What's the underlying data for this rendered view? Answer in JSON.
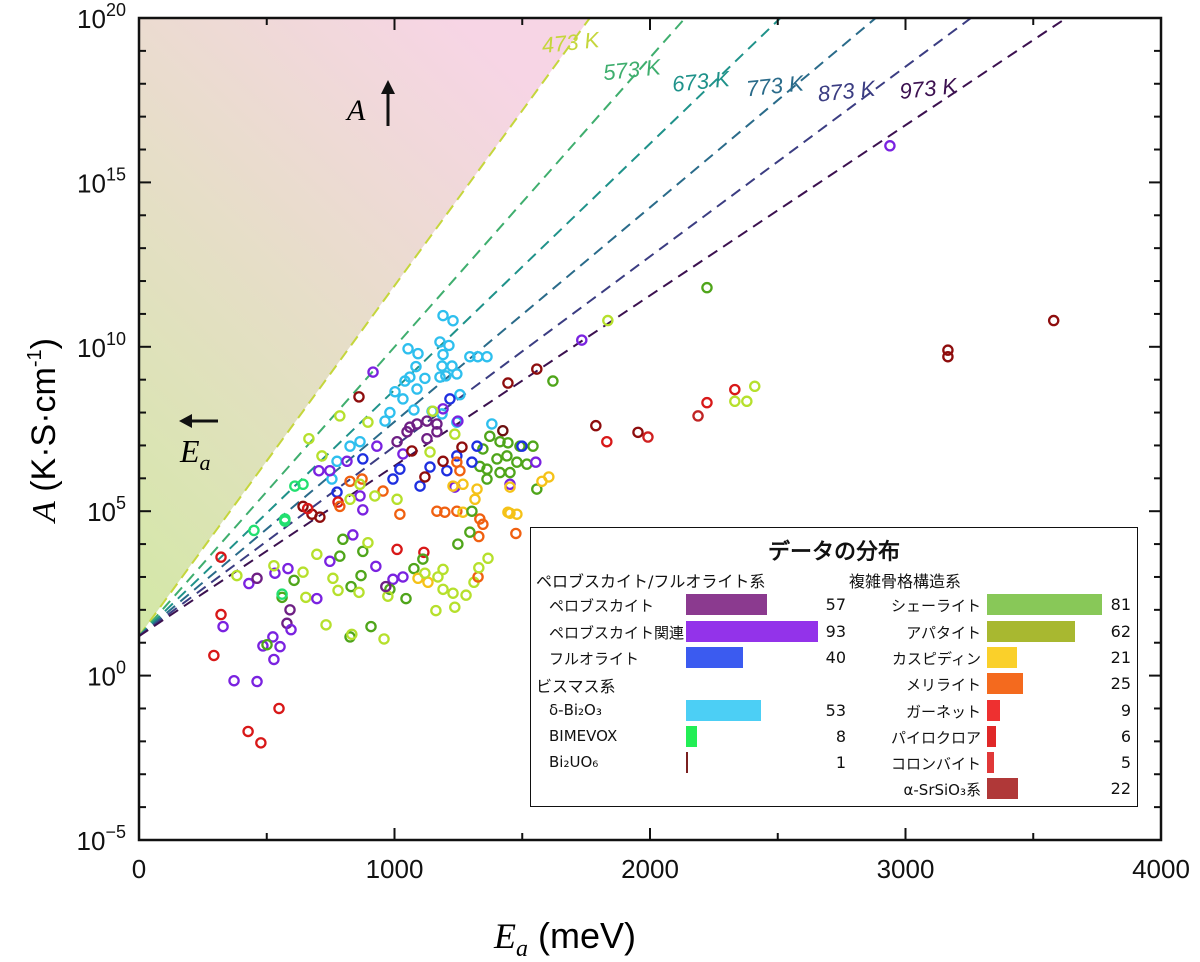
{
  "chart_data": {
    "type": "scatter",
    "xlabel": {
      "main": "E",
      "sub": "a",
      "unit": " (meV)"
    },
    "ylabel": {
      "main": "A",
      "unit": " (K·S·cm",
      "sup": "-1",
      "close": ")"
    },
    "xlim": [
      0,
      4000
    ],
    "ylim": [
      1e-05,
      1e+20
    ],
    "yscale": "log",
    "grid": false,
    "x_ticks": [
      "0",
      "1000",
      "2000",
      "3000",
      "4000"
    ],
    "y_ticks": [
      {
        "base": "10",
        "exp": "20",
        "value": 1e+20
      },
      {
        "base": "10",
        "exp": "15",
        "value": 1000000000000000.0
      },
      {
        "base": "10",
        "exp": "10",
        "value": 10000000000.0
      },
      {
        "base": "10",
        "exp": "5",
        "value": 100000.0
      },
      {
        "base": "10",
        "exp": "0",
        "value": 1
      },
      {
        "base": "10",
        "exp": "−5",
        "value": 1e-05
      }
    ],
    "annotations": {
      "a_arrow": "A",
      "ea_arrow_main": "E",
      "ea_arrow_sub": "a"
    },
    "region_colors": {
      "top": "#f7d5e5",
      "bottom": "#d3e8a6"
    },
    "isotherms": [
      {
        "label": "473 K",
        "T": 473,
        "color": "#c5d63c"
      },
      {
        "label": "573 K",
        "T": 573,
        "color": "#3fae6e"
      },
      {
        "label": "673 K",
        "T": 673,
        "color": "#1f928a"
      },
      {
        "label": "773 K",
        "T": 773,
        "color": "#2a6b8a"
      },
      {
        "label": "873 K",
        "T": 873,
        "color": "#3b3d82"
      },
      {
        "label": "973 K",
        "T": 973,
        "color": "#3c1150"
      }
    ],
    "categories": {
      "pv": {
        "label": "ペロブスカイト",
        "count": 57,
        "color": "#6e1f84",
        "bar": "#8b3a8f"
      },
      "pr": {
        "label": "ペロブスカイト関連",
        "count": 93,
        "color": "#7a22e0",
        "bar": "#9333ea"
      },
      "fl": {
        "label": "フルオライト",
        "count": 40,
        "color": "#1e2fe0",
        "bar": "#3b5bf0"
      },
      "db": {
        "label": "δ-Bi₂O₃",
        "count": 53,
        "color": "#2ebfee",
        "bar": "#4ccff5"
      },
      "bm": {
        "label": "BIMEVOX",
        "count": 8,
        "color": "#22e070",
        "bar": "#22ee55"
      },
      "bu": {
        "label": "Bi₂UO₆",
        "count": 1,
        "color": "#6b0f0f",
        "bar": "#7a2020"
      },
      "sh": {
        "label": "シェーライト",
        "count": 81,
        "color": "#4fa51a",
        "bar": "#88c858"
      },
      "ap": {
        "label": "アパタイト",
        "count": 62,
        "color": "#b6e02c",
        "bar": "#a8b830"
      },
      "ca": {
        "label": "カスピディン",
        "count": 21,
        "color": "#f5c218",
        "bar": "#fad02a"
      },
      "me": {
        "label": "メリライト",
        "count": 25,
        "color": "#f06010",
        "bar": "#f46a1e"
      },
      "ga": {
        "label": "ガーネット",
        "count": 9,
        "color": "#d81818",
        "bar": "#ee3030"
      },
      "py": {
        "label": "パイロクロア",
        "count": 6,
        "color": "#d02020",
        "bar": "#e02828"
      },
      "co": {
        "label": "コロンバイト",
        "count": 5,
        "color": "#c02424",
        "bar": "#e03838"
      },
      "ss": {
        "label": "α-SrSiO₃系",
        "count": 22,
        "color": "#8e0d0d",
        "bar": "#b03838"
      }
    },
    "points": [
      [
        321,
        72.0,
        "ga"
      ],
      [
        329,
        31.0,
        "pr"
      ],
      [
        293,
        4.1,
        "ga"
      ],
      [
        372,
        0.7,
        "pr"
      ],
      [
        462,
        0.66,
        "pr"
      ],
      [
        548,
        0.1,
        "ga"
      ],
      [
        427,
        0.02,
        "ga"
      ],
      [
        477,
        0.009,
        "ga"
      ],
      [
        524,
        15.0,
        "pr"
      ],
      [
        485,
        8.0,
        "pr"
      ],
      [
        552,
        7.6,
        "pr"
      ],
      [
        528,
        3.1,
        "pr"
      ],
      [
        501,
        8.7,
        "sh"
      ],
      [
        591,
        100.0,
        "pv"
      ],
      [
        579,
        39.0,
        "pv"
      ],
      [
        595,
        25.0,
        "pr"
      ],
      [
        560,
        240.0,
        "sh"
      ],
      [
        560,
        300.0,
        "bm"
      ],
      [
        732,
        35.0,
        "ap"
      ],
      [
        826,
        15.0,
        "sh"
      ],
      [
        833,
        18.0,
        "ap"
      ],
      [
        908,
        31.0,
        "sh"
      ],
      [
        959,
        13.0,
        "ap"
      ],
      [
        653,
        240.0,
        "ap"
      ],
      [
        696,
        220.0,
        "pr"
      ],
      [
        759,
        910.0,
        "ap"
      ],
      [
        779,
        390.0,
        "ap"
      ],
      [
        830,
        510.0,
        "sh"
      ],
      [
        861,
        340.0,
        "ap"
      ],
      [
        869,
        1100.0,
        "sh"
      ],
      [
        927,
        2100.0,
        "pr"
      ],
      [
        1010,
        6900.0,
        "ga"
      ],
      [
        1115,
        5600.0,
        "ga"
      ],
      [
        1111,
        3500.0,
        "sh"
      ],
      [
        1076,
        1800.0,
        "sh"
      ],
      [
        994,
        850.0,
        "pr"
      ],
      [
        1033,
        1000.0,
        "pr"
      ],
      [
        982,
        420.0,
        "sh"
      ],
      [
        974,
        260.0,
        "ap"
      ],
      [
        1045,
        220.0,
        "sh"
      ],
      [
        966,
        510.0,
        "pv"
      ],
      [
        1092,
        910.0,
        "ca"
      ],
      [
        1131,
        690.0,
        "ca"
      ],
      [
        1119,
        1300.0,
        "ap"
      ],
      [
        1170,
        1000.0,
        "ap"
      ],
      [
        1190,
        1700.0,
        "ap"
      ],
      [
        1190,
        420.0,
        "ap"
      ],
      [
        1229,
        320.0,
        "ap"
      ],
      [
        1280,
        280.0,
        "ap"
      ],
      [
        1162,
        95.0,
        "ap"
      ],
      [
        1236,
        120.0,
        "ap"
      ],
      [
        1311,
        690.0,
        "ap"
      ],
      [
        1327,
        1000.0,
        "me"
      ],
      [
        1330,
        1900.0,
        "ap"
      ],
      [
        1366,
        3700.0,
        "ap"
      ],
      [
        1248,
        10000.0,
        "sh"
      ],
      [
        1346,
        40000.0,
        "me"
      ],
      [
        1330,
        17000.0,
        "me"
      ],
      [
        1475,
        21000.0,
        "me"
      ],
      [
        1452,
        87000.0,
        "ca"
      ],
      [
        1295,
        23000.0,
        "sh"
      ],
      [
        430,
        630.0,
        "pr"
      ],
      [
        462,
        910.0,
        "pv"
      ],
      [
        383,
        1100.0,
        "ap"
      ],
      [
        321,
        4000.0,
        "ga"
      ],
      [
        532,
        1300.0,
        "pr"
      ],
      [
        583,
        1800.0,
        "pr"
      ],
      [
        642,
        1400.0,
        "ap"
      ],
      [
        607,
        790.0,
        "sh"
      ],
      [
        528,
        2200.0,
        "ap"
      ],
      [
        747,
        3000.0,
        "pr"
      ],
      [
        696,
        4900.0,
        "ap"
      ],
      [
        786,
        4300.0,
        "sh"
      ],
      [
        837,
        19000.0,
        "pr"
      ],
      [
        876,
        6000.0,
        "sh"
      ],
      [
        896,
        11000.0,
        "ap"
      ],
      [
        798,
        14000.0,
        "sh"
      ],
      [
        450,
        26000.0,
        "bm"
      ],
      [
        571,
        50000.0,
        "bm"
      ],
      [
        1190,
        89000000000.0,
        "db"
      ],
      [
        1229,
        62000000000.0,
        "db"
      ],
      [
        1178,
        14000000000.0,
        "db"
      ],
      [
        1213,
        11000000000.0,
        "db"
      ],
      [
        1053,
        8700000000.0,
        "db"
      ],
      [
        1092,
        6200000000.0,
        "db"
      ],
      [
        1295,
        5000000000.0,
        "db"
      ],
      [
        1326,
        5000000000.0,
        "db"
      ],
      [
        1362,
        5000000000.0,
        "db"
      ],
      [
        1190,
        5800000000.0,
        "db"
      ],
      [
        1084,
        2500000000.0,
        "db"
      ],
      [
        1186,
        2600000000.0,
        "db"
      ],
      [
        1225,
        2600000000.0,
        "db"
      ],
      [
        1119,
        1100000000.0,
        "db"
      ],
      [
        1060,
        1200000000.0,
        "db"
      ],
      [
        1041,
        910000000.0,
        "db"
      ],
      [
        1178,
        1200000000.0,
        "db"
      ],
      [
        1201,
        1300000000.0,
        "db"
      ],
      [
        1244,
        1500000000.0,
        "db"
      ],
      [
        1088,
        520000000.0,
        "db"
      ],
      [
        1002,
        430000000.0,
        "db"
      ],
      [
        1256,
        350000000.0,
        "db"
      ],
      [
        1033,
        260000000.0,
        "db"
      ],
      [
        982,
        100000000.0,
        "db"
      ],
      [
        963,
        55000000.0,
        "db"
      ],
      [
        1076,
        120000000.0,
        "db"
      ],
      [
        1186,
        91000000.0,
        "db"
      ],
      [
        1381,
        45000000.0,
        "db"
      ],
      [
        826,
        9500000.0,
        "db"
      ],
      [
        865,
        13000000.0,
        "db"
      ],
      [
        775,
        3300000.0,
        "db"
      ],
      [
        755,
        950000.0,
        "db"
      ],
      [
        1244,
        51000000.0,
        "db"
      ],
      [
        916,
        1700000000.0,
        "pr"
      ],
      [
        861,
        300000000.0,
        "ss"
      ],
      [
        786,
        79000000.0,
        "ap"
      ],
      [
        896,
        51000000.0,
        "ap"
      ],
      [
        665,
        16000000.0,
        "ap"
      ],
      [
        716,
        4800000.0,
        "ap"
      ],
      [
        704,
        1700000.0,
        "pr"
      ],
      [
        1217,
        260000000.0,
        "fl"
      ],
      [
        1190,
        130000000.0,
        "pr"
      ],
      [
        1147,
        110000000.0,
        "db"
      ],
      [
        1248,
        55000000.0,
        "pr"
      ],
      [
        1088,
        45000000.0,
        "pv"
      ],
      [
        1127,
        55000000.0,
        "pv"
      ],
      [
        1166,
        45000000.0,
        "pv"
      ],
      [
        1060,
        36000000.0,
        "pv"
      ],
      [
        1010,
        13000000.0,
        "pv"
      ],
      [
        1049,
        26000000.0,
        "pv"
      ],
      [
        1166,
        26000000.0,
        "pv"
      ],
      [
        1127,
        16000000.0,
        "pv"
      ],
      [
        1557,
        2100000000.0,
        "ss"
      ],
      [
        1444,
        790000000.0,
        "ss"
      ],
      [
        1620,
        910000000.0,
        "sh"
      ],
      [
        1424,
        28000000.0,
        "bu"
      ],
      [
        1373,
        19000000.0,
        "sh"
      ],
      [
        1413,
        13000000.0,
        "sh"
      ],
      [
        1444,
        12000000.0,
        "sh"
      ],
      [
        1491,
        9500000.0,
        "sh"
      ],
      [
        1542,
        9500000.0,
        "sh"
      ],
      [
        1346,
        7800000.0,
        "sh"
      ],
      [
        1401,
        3900000.0,
        "sh"
      ],
      [
        1440,
        4800000.0,
        "sh"
      ],
      [
        1479,
        3100000.0,
        "sh"
      ],
      [
        1518,
        2700000.0,
        "sh"
      ],
      [
        1362,
        1900000.0,
        "sh"
      ],
      [
        1413,
        1500000.0,
        "sh"
      ],
      [
        1452,
        1500000.0,
        "sh"
      ],
      [
        1334,
        2300000.0,
        "sh"
      ],
      [
        1557,
        470000.0,
        "sh"
      ],
      [
        1499,
        9500000.0,
        "fl"
      ],
      [
        1323,
        9500000.0,
        "fl"
      ],
      [
        1303,
        3100000.0,
        "fl"
      ],
      [
        1244,
        4800000.0,
        "fl"
      ],
      [
        1205,
        1700000.0,
        "fl"
      ],
      [
        1139,
        2200000.0,
        "fl"
      ],
      [
        1100,
        580000.0,
        "fl"
      ],
      [
        1021,
        1900000.0,
        "fl"
      ],
      [
        994,
        950000.0,
        "fl"
      ],
      [
        775,
        380000.0,
        "fl"
      ],
      [
        876,
        3900000.0,
        "fl"
      ],
      [
        1553,
        3100000.0,
        "pr"
      ],
      [
        1452,
        660000.0,
        "pr"
      ],
      [
        1236,
        540000.0,
        "pr"
      ],
      [
        931,
        9500000.0,
        "pr"
      ],
      [
        814,
        3300000.0,
        "pr"
      ],
      [
        747,
        1700000.0,
        "pr"
      ],
      [
        1033,
        5500000.0,
        "pr"
      ],
      [
        865,
        290000.0,
        "pr"
      ],
      [
        876,
        110000.0,
        "pr"
      ],
      [
        1190,
        3300000.0,
        "ss"
      ],
      [
        1264,
        8900000.0,
        "ss"
      ],
      [
        1068,
        6800000.0,
        "ss"
      ],
      [
        1119,
        1100000.0,
        "ss"
      ],
      [
        642,
        140000.0,
        "ss"
      ],
      [
        677,
        81000.0,
        "ss"
      ],
      [
        708,
        66000.0,
        "ss"
      ],
      [
        779,
        190000.0,
        "ga"
      ],
      [
        660,
        120000.0,
        "ga"
      ],
      [
        1244,
        3100000.0,
        "me"
      ],
      [
        1256,
        1700000.0,
        "me"
      ],
      [
        826,
        810000.0,
        "me"
      ],
      [
        873,
        950000.0,
        "me"
      ],
      [
        955,
        410000.0,
        "me"
      ],
      [
        1166,
        100000.0,
        "me"
      ],
      [
        1197,
        93000.0,
        "me"
      ],
      [
        1244,
        100000.0,
        "me"
      ],
      [
        1021,
        81000.0,
        "me"
      ],
      [
        786,
        140000.0,
        "me"
      ],
      [
        1334,
        58000.0,
        "me"
      ],
      [
        1229,
        580000.0,
        "ca"
      ],
      [
        1268,
        660000.0,
        "ca"
      ],
      [
        1323,
        470000.0,
        "ca"
      ],
      [
        1315,
        230000.0,
        "ca"
      ],
      [
        1268,
        93000.0,
        "ca"
      ],
      [
        1444,
        93000.0,
        "ca"
      ],
      [
        1479,
        81000.0,
        "ca"
      ],
      [
        1577,
        810000.0,
        "ca"
      ],
      [
        1604,
        1100000.0,
        "ca"
      ],
      [
        1452,
        540000.0,
        "ca"
      ],
      [
        1362,
        950000.0,
        "sh"
      ],
      [
        1303,
        100000.0,
        "sh"
      ],
      [
        1150,
        110000000.0,
        "ap"
      ],
      [
        1236,
        22000000.0,
        "ap"
      ],
      [
        1139,
        6300000.0,
        "ap"
      ],
      [
        865,
        660000.0,
        "ap"
      ],
      [
        923,
        290000.0,
        "ap"
      ],
      [
        1010,
        230000.0,
        "ap"
      ],
      [
        826,
        230000.0,
        "ap"
      ],
      [
        610,
        580000.0,
        "bm"
      ],
      [
        642,
        660000.0,
        "bm"
      ],
      [
        571,
        58000.0,
        "bm"
      ],
      [
        2939,
        1.3e+16,
        "pr"
      ],
      [
        2223,
        630000000000.0,
        "sh"
      ],
      [
        1835,
        63000000000.0,
        "ap"
      ],
      [
        1733,
        16000000000.0,
        "pr"
      ],
      [
        3580,
        63000000000.0,
        "ss"
      ],
      [
        3166,
        7900000000.0,
        "ss"
      ],
      [
        3166,
        5000000000.0,
        "ss"
      ],
      [
        2332,
        500000000.0,
        "ga"
      ],
      [
        2223,
        200000000.0,
        "ga"
      ],
      [
        2188,
        79000000.0,
        "co"
      ],
      [
        2410,
        630000000.0,
        "ap"
      ],
      [
        2332,
        220000000.0,
        "ap"
      ],
      [
        2379,
        220000000.0,
        "ap"
      ],
      [
        1953,
        25000000.0,
        "ss"
      ],
      [
        1992,
        18000000.0,
        "py"
      ],
      [
        1788,
        40000000.0,
        "ss"
      ],
      [
        1831,
        13000000.0,
        "ga"
      ]
    ],
    "legend": {
      "title": "データの分布",
      "left_groups": [
        {
          "header": "ペロブスカイト/フルオライト系",
          "items": [
            "pv",
            "pr",
            "fl"
          ]
        },
        {
          "header": "ビスマス系",
          "items": [
            "db",
            "bm",
            "bu"
          ]
        }
      ],
      "right_groups": [
        {
          "header": "複雑骨格構造系",
          "items": [
            "sh",
            "ap",
            "ca",
            "me",
            "ga",
            "py",
            "co",
            "ss"
          ]
        }
      ]
    }
  }
}
